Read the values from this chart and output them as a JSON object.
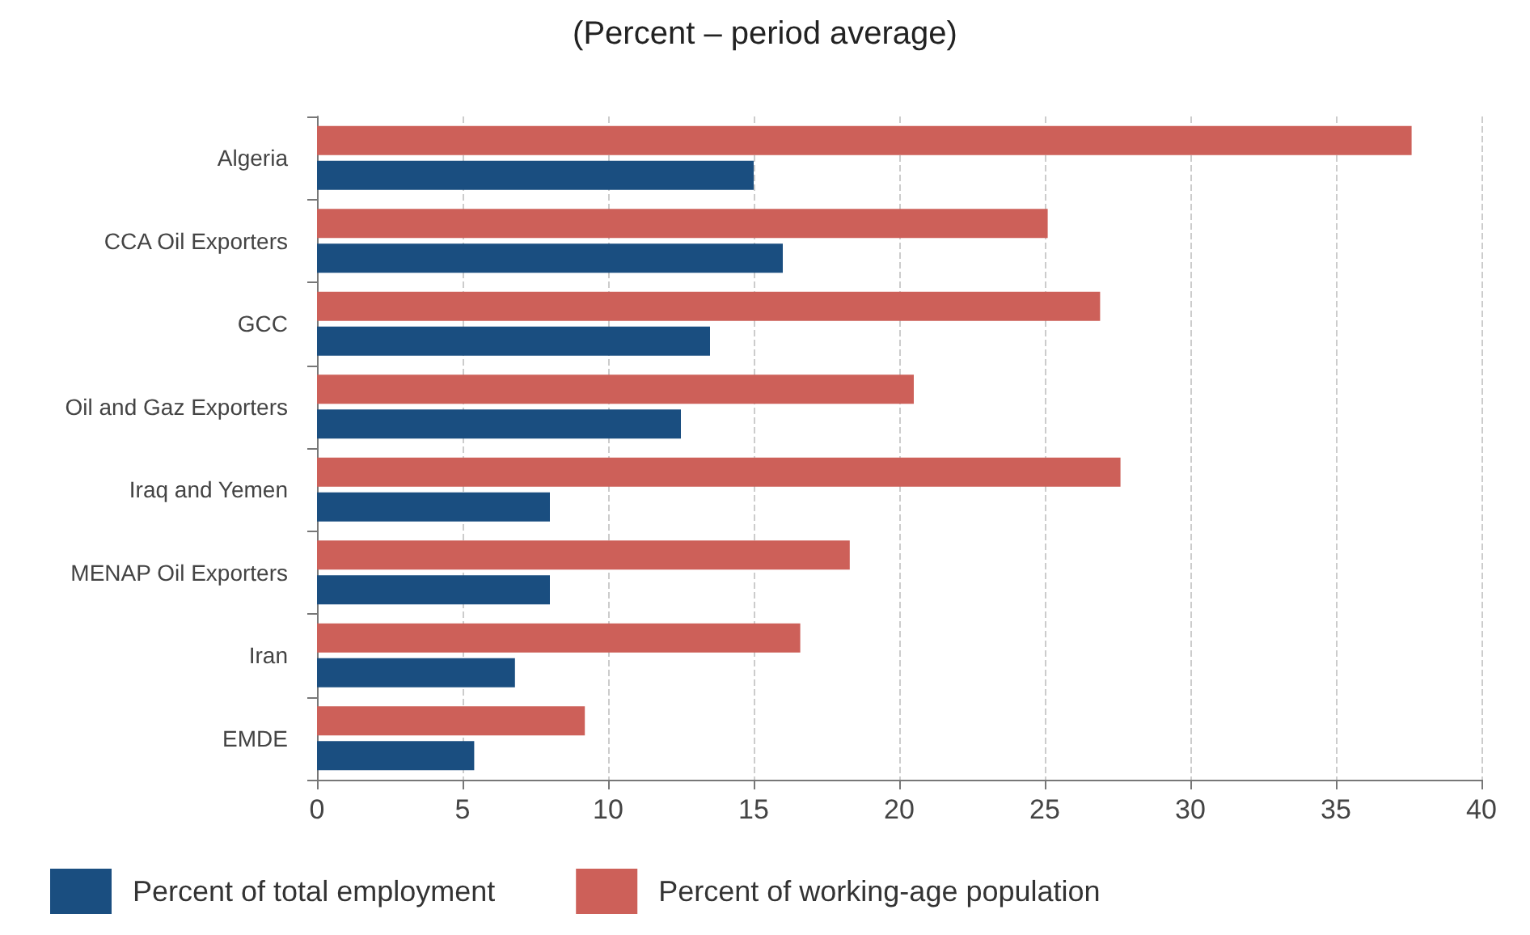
{
  "chart_data": {
    "type": "bar",
    "orientation": "horizontal",
    "subtitle": "(Percent – period average)",
    "categories": [
      "Algeria",
      "CCA Oil Exporters",
      "GCC",
      "Oil and Gaz Exporters",
      "Iraq and Yemen",
      "MENAP Oil Exporters",
      "Iran",
      "EMDE"
    ],
    "series": [
      {
        "name": "Percent of total employment",
        "color": "#1a4e80",
        "values": [
          15.0,
          16.0,
          13.5,
          12.5,
          8.0,
          8.0,
          6.8,
          5.4
        ]
      },
      {
        "name": "Percent of working-age population",
        "color": "#cd6059",
        "values": [
          37.6,
          25.1,
          26.9,
          20.5,
          27.6,
          18.3,
          16.6,
          9.2
        ]
      }
    ],
    "xlim": [
      0,
      40
    ],
    "xticks": [
      0,
      5,
      10,
      15,
      20,
      25,
      30,
      35,
      40
    ],
    "grid": "x",
    "legend": "bottom left"
  }
}
